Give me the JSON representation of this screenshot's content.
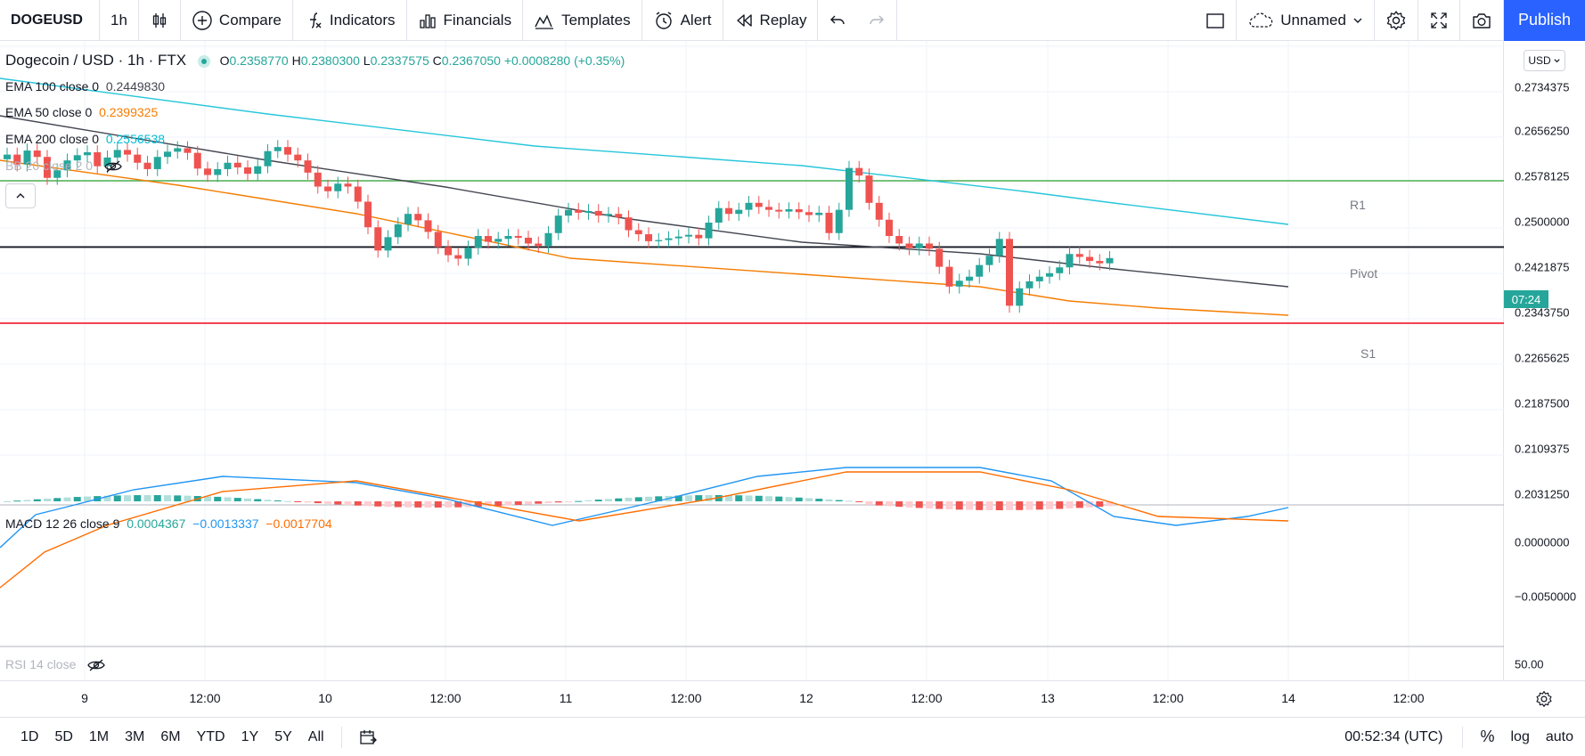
{
  "toolbar": {
    "symbol": "DOGEUSD",
    "interval": "1h",
    "compare": "Compare",
    "indicators": "Indicators",
    "financials": "Financials",
    "templates": "Templates",
    "alert": "Alert",
    "replay": "Replay",
    "layout_name": "Unnamed",
    "publish": "Publish"
  },
  "legend": {
    "title": "Dogecoin / USD · 1h · FTX",
    "o_label": "O",
    "o": "0.2358770",
    "h_label": "H",
    "h": "0.2380300",
    "l_label": "L",
    "l": "0.2337575",
    "c_label": "C",
    "c": "0.2367050",
    "change": "+0.0008280 (+0.35%)",
    "ema100_label": "EMA 100 close 0",
    "ema100": "0.2449830",
    "ema50_label": "EMA 50 close 0",
    "ema50": "0.2399325",
    "ema200_label": "EMA 200 close 0",
    "ema200": "0.2556538",
    "bb_label": "BB 20 close 2 0",
    "macd_label": "MACD 12 26 close 9",
    "macd_hist": "0.0004367",
    "macd_line": "−0.0013337",
    "macd_signal": "−0.0017704",
    "rsi_label": "RSI 14 close"
  },
  "price_scale": {
    "currency": "USD",
    "ticks": [
      "0.2734375",
      "0.2656250",
      "0.2578125",
      "0.2500000",
      "0.2421875",
      "0.2343750",
      "0.2265625",
      "0.2187500",
      "0.2109375",
      "0.2031250"
    ],
    "countdown": "07:24",
    "macd_ticks": [
      "0.0000000",
      "−0.0050000"
    ],
    "rsi_tick": "50.00"
  },
  "pivots": {
    "r1": "R1",
    "pivot": "Pivot",
    "s1": "S1"
  },
  "time_scale": {
    "ticks": [
      "9",
      "12:00",
      "10",
      "12:00",
      "11",
      "12:00",
      "12",
      "12:00",
      "13",
      "12:00",
      "14",
      "12:00"
    ]
  },
  "bottom": {
    "ranges": [
      "1D",
      "5D",
      "1M",
      "3M",
      "6M",
      "YTD",
      "1Y",
      "5Y",
      "All"
    ],
    "clock": "00:52:34 (UTC)",
    "percent": "%",
    "log": "log",
    "auto": "auto"
  },
  "colors": {
    "up": "#26a69a",
    "down": "#ef5350",
    "ema50": "#f57c00",
    "ema100": "#434651",
    "ema200": "#26c6da",
    "macd": "#2196f3",
    "signal": "#ff6d00",
    "r1": "#4caf50",
    "s1": "#f23645"
  },
  "chart_data": {
    "type": "candlestick",
    "yrange": [
      0.2,
      0.28
    ],
    "pivot_levels": {
      "r1": 0.25,
      "pivot": 0.2386,
      "s1": 0.2255
    },
    "closes": [
      0.2545,
      0.2528,
      0.2552,
      0.2541,
      0.2505,
      0.2518,
      0.2535,
      0.2544,
      0.2549,
      0.2525,
      0.254,
      0.2553,
      0.2545,
      0.2531,
      0.252,
      0.2541,
      0.255,
      0.2556,
      0.2548,
      0.2521,
      0.251,
      0.252,
      0.2531,
      0.2523,
      0.2512,
      0.2525,
      0.2551,
      0.2558,
      0.2545,
      0.2535,
      0.2514,
      0.249,
      0.2482,
      0.2495,
      0.249,
      0.2464,
      0.242,
      0.238,
      0.2403,
      0.2425,
      0.2443,
      0.2432,
      0.2412,
      0.2386,
      0.2372,
      0.2366,
      0.2385,
      0.2405,
      0.2395,
      0.24,
      0.2405,
      0.2402,
      0.2392,
      0.2388,
      0.241,
      0.244,
      0.245,
      0.2445,
      0.2448,
      0.244,
      0.2443,
      0.2437,
      0.2415,
      0.2408,
      0.2396,
      0.2398,
      0.2401,
      0.2404,
      0.2407,
      0.2401,
      0.2428,
      0.2453,
      0.2443,
      0.245,
      0.2462,
      0.2455,
      0.245,
      0.2447,
      0.2451,
      0.2446,
      0.2441,
      0.2445,
      0.241,
      0.245,
      0.2522,
      0.2509,
      0.2462,
      0.2433,
      0.2405,
      0.2392,
      0.2384,
      0.2392,
      0.2383,
      0.2352,
      0.2318,
      0.2328,
      0.2335,
      0.2355,
      0.2371,
      0.24,
      0.2285,
      0.2315,
      0.2327,
      0.2335,
      0.2341,
      0.2351,
      0.2374,
      0.2369,
      0.2362,
      0.2358,
      0.2367
    ]
  }
}
